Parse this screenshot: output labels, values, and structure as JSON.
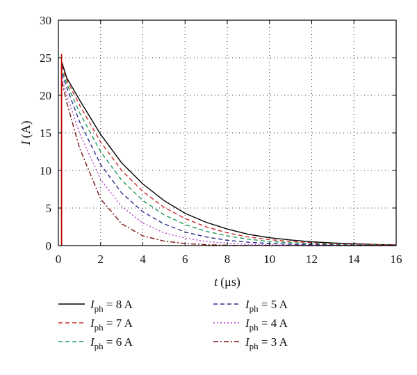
{
  "chart_data": {
    "type": "line",
    "title": "",
    "xlabel": {
      "symbol": "t",
      "unit": "(μs)"
    },
    "ylabel": {
      "symbol": "I",
      "unit": "(A)"
    },
    "xlim": [
      0,
      16
    ],
    "ylim": [
      0,
      30
    ],
    "xticks": [
      "0",
      "2",
      "4",
      "6",
      "8",
      "10",
      "12",
      "14",
      "16"
    ],
    "yticks": [
      "0",
      "5",
      "10",
      "15",
      "20",
      "25",
      "30"
    ],
    "grid": true,
    "legend_placement": "below-plot",
    "series": [
      {
        "name": "8",
        "legend": {
          "sym": "I",
          "sub": "ph",
          "rest": " = 8 A"
        },
        "color": "#000000",
        "dash": "",
        "x": [
          0.15,
          0.4,
          1,
          2,
          3,
          4,
          5,
          6,
          7,
          8,
          9,
          10,
          11,
          12,
          13,
          14,
          15,
          16
        ],
        "y": [
          24.5,
          22.3,
          19.4,
          14.8,
          11.0,
          8.2,
          6.0,
          4.3,
          3.1,
          2.2,
          1.5,
          1.05,
          0.75,
          0.5,
          0.35,
          0.25,
          0.15,
          0.1
        ]
      },
      {
        "name": "7",
        "legend": {
          "sym": "I",
          "sub": "ph",
          "rest": " = 7 A"
        },
        "color": "#cc2a2a",
        "dash": "6 4",
        "x": [
          0.15,
          0.4,
          1,
          2,
          3,
          4,
          5,
          6,
          7,
          8,
          9,
          10,
          11,
          12,
          13,
          14,
          15,
          16
        ],
        "y": [
          24.0,
          22.0,
          18.7,
          13.8,
          10.0,
          7.2,
          5.1,
          3.6,
          2.5,
          1.7,
          1.15,
          0.8,
          0.55,
          0.38,
          0.26,
          0.18,
          0.12,
          0.08
        ]
      },
      {
        "name": "6",
        "legend": {
          "sym": "I",
          "sub": "ph",
          "rest": " = 6 A"
        },
        "color": "#1f9a5a",
        "dash": "6 4",
        "x": [
          0.15,
          0.4,
          1,
          2,
          3,
          4,
          5,
          6,
          7,
          8,
          9,
          10,
          11,
          12,
          13,
          14,
          15,
          16
        ],
        "y": [
          23.5,
          21.5,
          17.7,
          12.5,
          8.7,
          6.0,
          4.1,
          2.8,
          1.9,
          1.3,
          0.85,
          0.55,
          0.38,
          0.25,
          0.16,
          0.1,
          0.07,
          0.05
        ]
      },
      {
        "name": "5",
        "legend": {
          "sym": "I",
          "sub": "ph",
          "rest": " = 5 A"
        },
        "color": "#2b2b8f",
        "dash": "6 4",
        "x": [
          0.15,
          0.4,
          1,
          2,
          3,
          4,
          5,
          6,
          7,
          8,
          9,
          10,
          11,
          12,
          13,
          14,
          15,
          16
        ],
        "y": [
          23.0,
          21.0,
          16.5,
          10.8,
          7.0,
          4.5,
          2.9,
          1.8,
          1.15,
          0.7,
          0.45,
          0.28,
          0.18,
          0.12,
          0.08,
          0.05,
          0.03,
          0.02
        ]
      },
      {
        "name": "4",
        "legend": {
          "sym": "I",
          "sub": "ph",
          "rest": " = 4 A"
        },
        "color": "#b43cc8",
        "dash": "2 3",
        "x": [
          0.15,
          0.4,
          1,
          2,
          3,
          4,
          5,
          6,
          7,
          8,
          9,
          10,
          11,
          12,
          13,
          14,
          15,
          16
        ],
        "y": [
          22.5,
          20.0,
          15.0,
          8.8,
          5.2,
          3.0,
          1.7,
          1.0,
          0.55,
          0.3,
          0.17,
          0.1,
          0.06,
          0.04,
          0.02,
          0.01,
          0.01,
          0.0
        ]
      },
      {
        "name": "3",
        "legend": {
          "sym": "I",
          "sub": "ph",
          "rest": " = 3 A"
        },
        "color": "#7a1010",
        "dash": "7 3 2 3",
        "x": [
          0.15,
          0.4,
          1,
          2,
          3,
          4,
          5,
          6,
          7,
          8,
          9,
          10,
          11,
          12,
          13,
          14,
          15,
          16
        ],
        "y": [
          22.0,
          19.0,
          13.0,
          6.2,
          2.9,
          1.3,
          0.6,
          0.27,
          0.12,
          0.05,
          0.02,
          0.01,
          0.0,
          0.0,
          0.0,
          0.0,
          0.0,
          0.0
        ]
      }
    ],
    "spike": {
      "x": 0.15,
      "y_peak": 25.5,
      "color": "#cc0000"
    }
  }
}
